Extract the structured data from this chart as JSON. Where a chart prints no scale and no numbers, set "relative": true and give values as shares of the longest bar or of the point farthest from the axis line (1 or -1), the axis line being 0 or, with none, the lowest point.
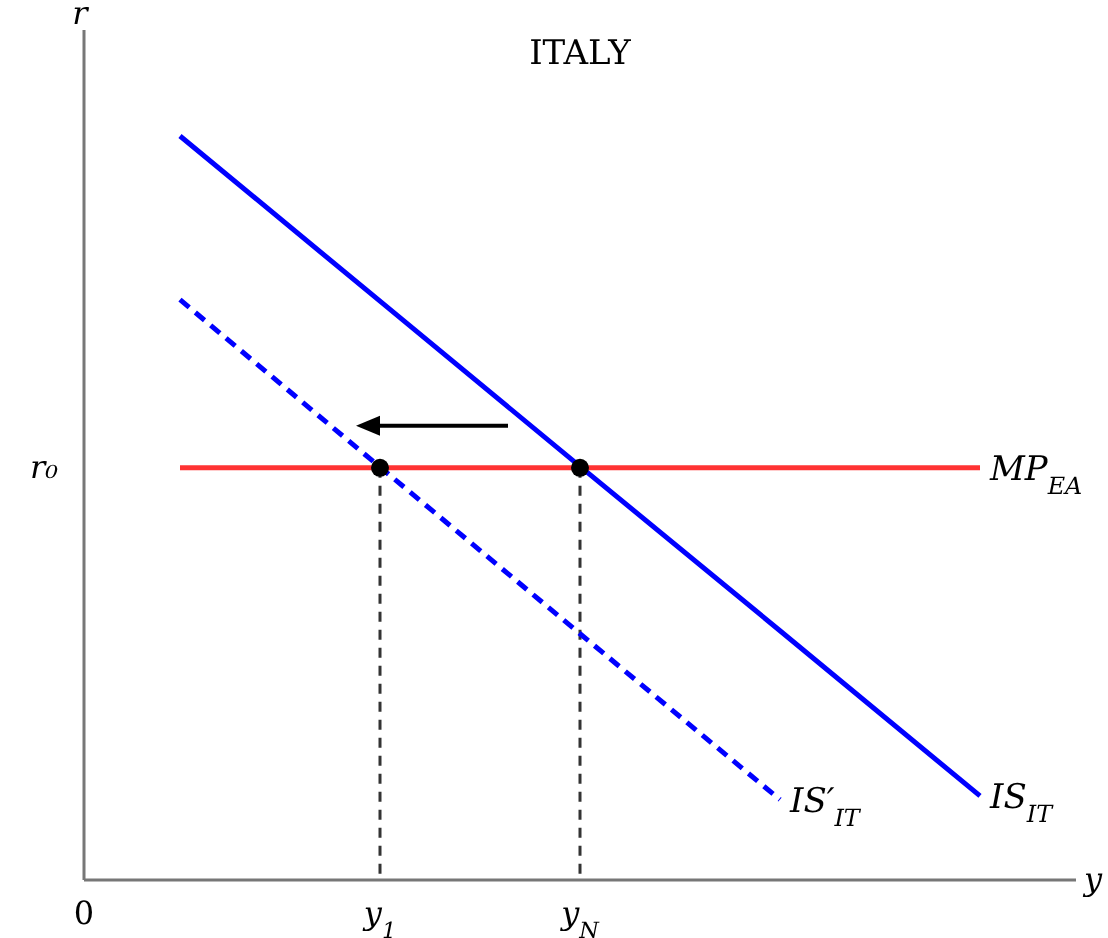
{
  "chart_data": {
    "type": "line",
    "title": "ITALY",
    "xlabel": "y",
    "ylabel": "r",
    "relative": true,
    "categories": [
      null,
      "y$_{1}$",
      "y$_{N}$",
      null,
      null
    ],
    "annotations": [
      "0",
      "r₀"
    ],
    "legend": false,
    "series": [
      {
        "name": "IS$_{IT}$",
        "color": "#0000ff",
        "values": [
          1,
          0.778,
          0.556,
          0.335,
          0.113
        ],
        "line_style": "solid",
        "marker": "none"
      },
      {
        "name": "IS′$_{IT}$",
        "color": "#0000ff",
        "values": [
          0.78,
          0.555,
          0.331,
          0.108,
          null
        ],
        "line_style": "dashed",
        "marker": "none"
      },
      {
        "name": "MP$_{EA}$",
        "color": "#ff3333",
        "values": [
          0.554,
          0.554,
          0.554,
          0.554,
          0.554
        ],
        "line_style": "solid",
        "marker": "none"
      },
      {
        "type": "scatter",
        "color": "#000000",
        "values": [
          null,
          0.554,
          0.554,
          null,
          null
        ],
        "marker": "circle"
      }
    ]
  }
}
